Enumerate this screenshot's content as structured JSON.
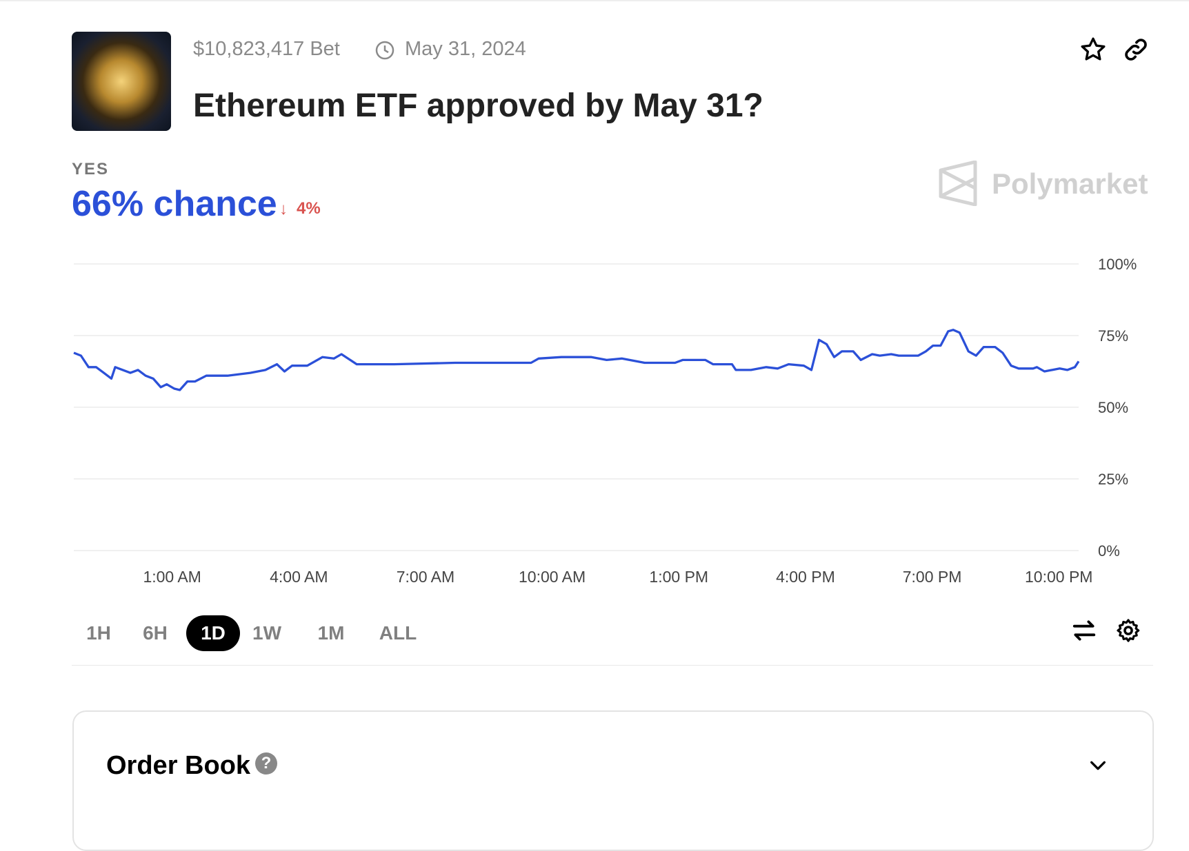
{
  "header": {
    "volume": "$10,823,417 Bet",
    "date": "May 31, 2024",
    "title": "Ethereum ETF approved by May 31?"
  },
  "outcome": {
    "label": "YES",
    "chance": "66% chance",
    "change": "4%"
  },
  "brand": "Polymarket",
  "chart_data": {
    "type": "line",
    "color": "#2b50d8",
    "grid": true,
    "x": [
      -1.33,
      -1.16,
      -0.98,
      -0.8,
      -0.62,
      -0.44,
      -0.35,
      -0.17,
      0.01,
      0.19,
      0.37,
      0.55,
      0.73,
      0.87,
      1.05,
      1.18,
      1.36,
      1.54,
      1.81,
      2.31,
      2.85,
      3.21,
      3.48,
      3.66,
      3.84,
      4.2,
      4.56,
      4.83,
      5.01,
      5.37,
      5.91,
      6.26,
      7.7,
      9.5,
      9.68,
      10.22,
      10.93,
      11.29,
      11.65,
      12.19,
      12.91,
      13.09,
      13.63,
      13.81,
      14.26,
      14.35,
      14.71,
      15.07,
      15.34,
      15.6,
      15.96,
      16.14,
      16.32,
      16.5,
      16.68,
      16.86,
      17.13,
      17.31,
      17.58,
      17.76,
      18.03,
      18.21,
      18.67,
      18.85,
      19.02,
      19.2,
      19.38,
      19.5,
      19.65,
      19.86,
      20.04,
      20.22,
      20.49,
      20.67,
      20.87,
      21.05,
      21.39,
      21.48,
      21.66,
      22.02,
      22.2,
      22.38,
      22.47
    ],
    "values": [
      69,
      68,
      64,
      64,
      62,
      60,
      64,
      63,
      62,
      63,
      61,
      60,
      57,
      58,
      56.5,
      56,
      59,
      59,
      61,
      61,
      62,
      63,
      65,
      62.5,
      64.5,
      64.5,
      67.5,
      67,
      68.5,
      65,
      65,
      65,
      65.5,
      65.5,
      67,
      67.5,
      67.5,
      66.5,
      67,
      65.5,
      65.5,
      66.5,
      66.5,
      65,
      65,
      63,
      63,
      64,
      63.5,
      65,
      64.5,
      63,
      73.5,
      72,
      67.5,
      69.5,
      69.5,
      66.5,
      68.5,
      68,
      68.5,
      68,
      68,
      69.5,
      71.5,
      71.5,
      76.5,
      77,
      76,
      69.5,
      68,
      71,
      71,
      69,
      64.5,
      63.5,
      63.5,
      64,
      62.5,
      63.5,
      63,
      64,
      66
    ],
    "xlim": [
      -1.33,
      22.47
    ],
    "xticks": [
      {
        "value": 1,
        "label": "1:00 AM"
      },
      {
        "value": 4,
        "label": "4:00 AM"
      },
      {
        "value": 7,
        "label": "7:00 AM"
      },
      {
        "value": 10,
        "label": "10:00 AM"
      },
      {
        "value": 13,
        "label": "1:00 PM"
      },
      {
        "value": 16,
        "label": "4:00 PM"
      },
      {
        "value": 19,
        "label": "7:00 PM"
      },
      {
        "value": 22,
        "label": "10:00 PM"
      }
    ],
    "ylim": [
      0,
      100
    ],
    "yticks": [
      {
        "value": 0,
        "label": "0%"
      },
      {
        "value": 25,
        "label": "25%"
      },
      {
        "value": 50,
        "label": "50%"
      },
      {
        "value": 75,
        "label": "75%"
      },
      {
        "value": 100,
        "label": "100%"
      }
    ]
  },
  "timeframes": [
    "1H",
    "6H",
    "1D",
    "1W",
    "1M",
    "ALL"
  ],
  "selected_timeframe": "1D",
  "order_book": {
    "title": "Order Book"
  }
}
